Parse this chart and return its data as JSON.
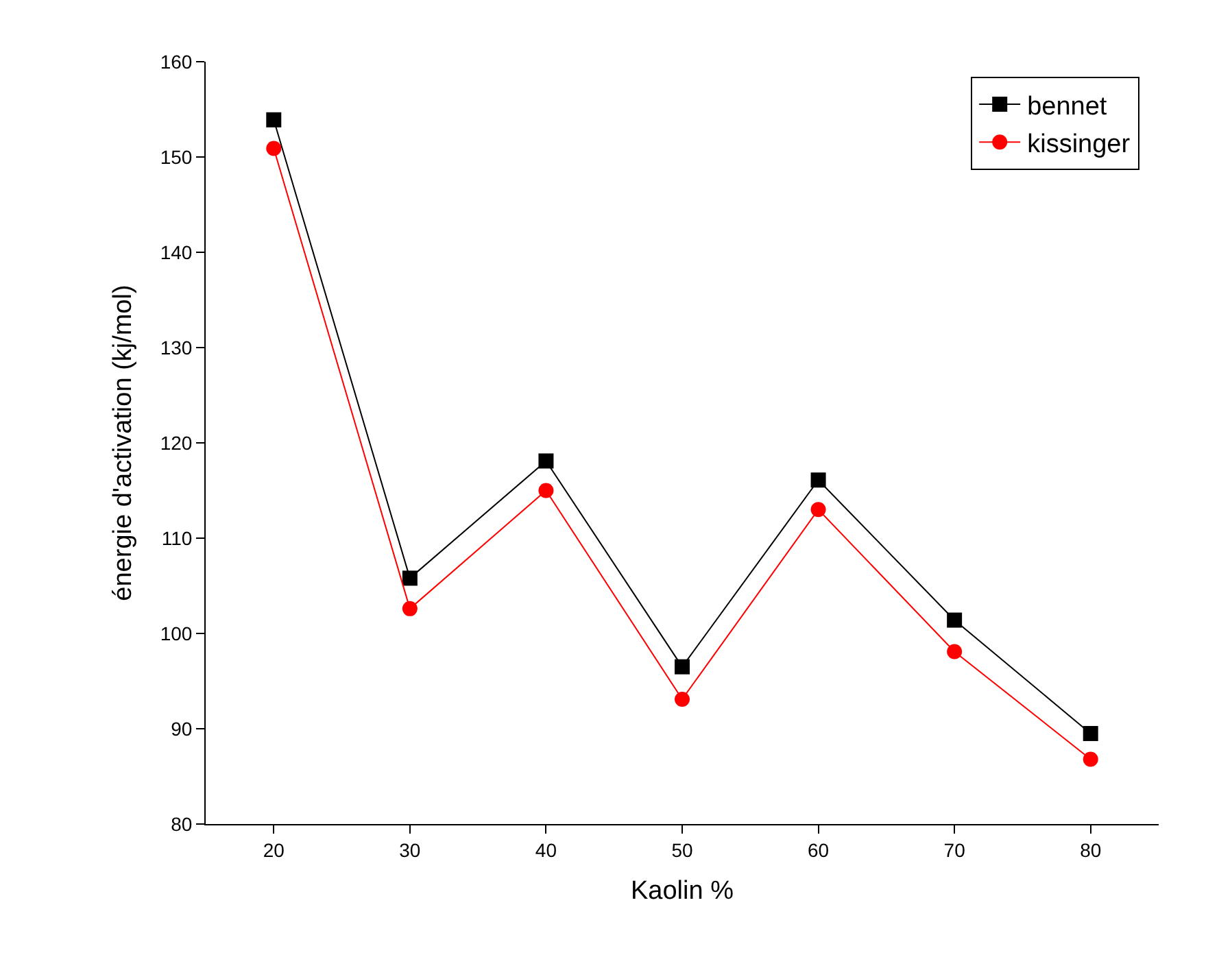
{
  "chart_data": {
    "type": "line",
    "xlabel": "Kaolin %",
    "ylabel": "énergie d'activation (kj/mol)",
    "x": [
      20,
      30,
      40,
      50,
      60,
      70,
      80
    ],
    "series": [
      {
        "name": "bennet",
        "color": "#000000",
        "marker": "square",
        "values": [
          153.9,
          105.8,
          118.1,
          96.5,
          116.1,
          101.4,
          89.5
        ]
      },
      {
        "name": "kissinger",
        "color": "#ff0000",
        "marker": "circle",
        "values": [
          150.9,
          102.6,
          115.0,
          93.1,
          113.0,
          98.1,
          86.8
        ]
      }
    ],
    "xlim": [
      15,
      85
    ],
    "xticks": [
      20,
      30,
      40,
      50,
      60,
      70,
      80
    ],
    "ylim": [
      80,
      160
    ],
    "yticks": [
      80,
      90,
      100,
      110,
      120,
      130,
      140,
      150,
      160
    ],
    "legend": "top right",
    "line_style": "solid"
  }
}
